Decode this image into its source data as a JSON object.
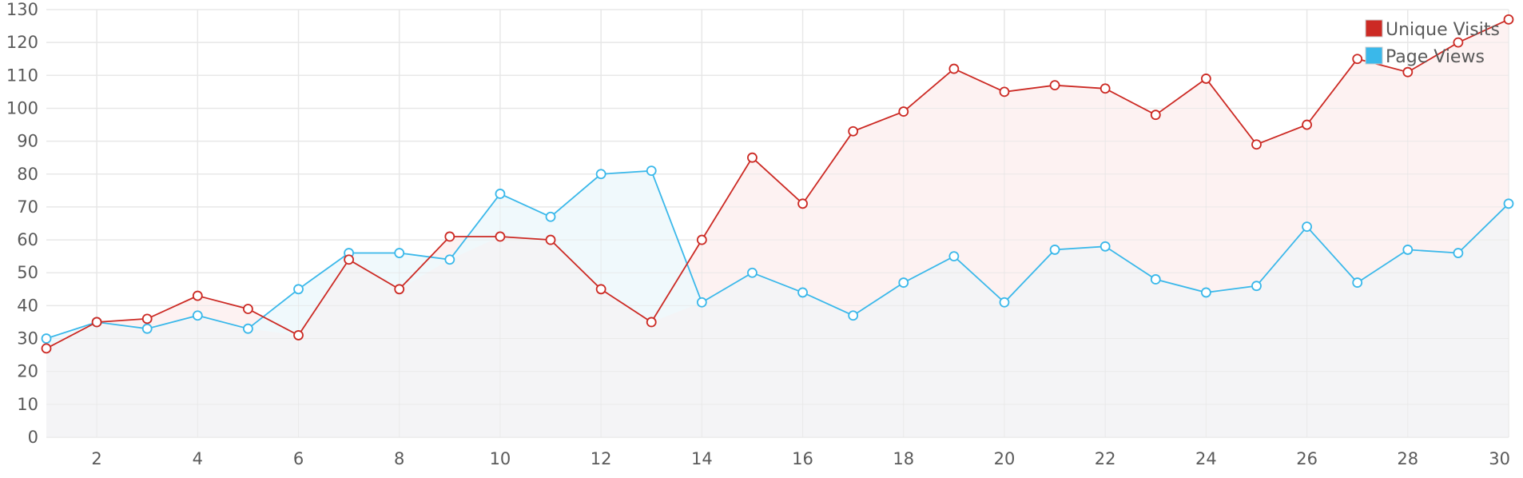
{
  "chart_data": {
    "type": "line",
    "x": [
      1,
      2,
      3,
      4,
      5,
      6,
      7,
      8,
      9,
      10,
      11,
      12,
      13,
      14,
      15,
      16,
      17,
      18,
      19,
      20,
      21,
      22,
      23,
      24,
      25,
      26,
      27,
      28,
      29,
      30
    ],
    "xticks": [
      2,
      4,
      6,
      8,
      10,
      12,
      14,
      16,
      18,
      20,
      22,
      24,
      26,
      28,
      30
    ],
    "yticks": [
      0,
      10,
      20,
      30,
      40,
      50,
      60,
      70,
      80,
      90,
      100,
      110,
      120,
      130
    ],
    "xlim": [
      1,
      30
    ],
    "ylim": [
      0,
      130
    ],
    "grid": true,
    "legend_position": "top-right",
    "series": [
      {
        "name": "Unique Visits",
        "color": "#cc2a24",
        "fill": "#fdf1f1",
        "values": [
          27,
          35,
          36,
          43,
          39,
          31,
          54,
          45,
          61,
          61,
          60,
          45,
          35,
          60,
          85,
          71,
          93,
          99,
          112,
          105,
          107,
          106,
          98,
          109,
          89,
          95,
          115,
          111,
          120,
          127
        ]
      },
      {
        "name": "Page Views",
        "color": "#3ab8ea",
        "fill": "#eef8fc",
        "values": [
          30,
          35,
          33,
          37,
          33,
          45,
          56,
          56,
          54,
          74,
          67,
          80,
          81,
          41,
          50,
          44,
          37,
          47,
          55,
          41,
          57,
          58,
          48,
          44,
          46,
          64,
          47,
          57,
          56,
          71
        ]
      }
    ]
  }
}
